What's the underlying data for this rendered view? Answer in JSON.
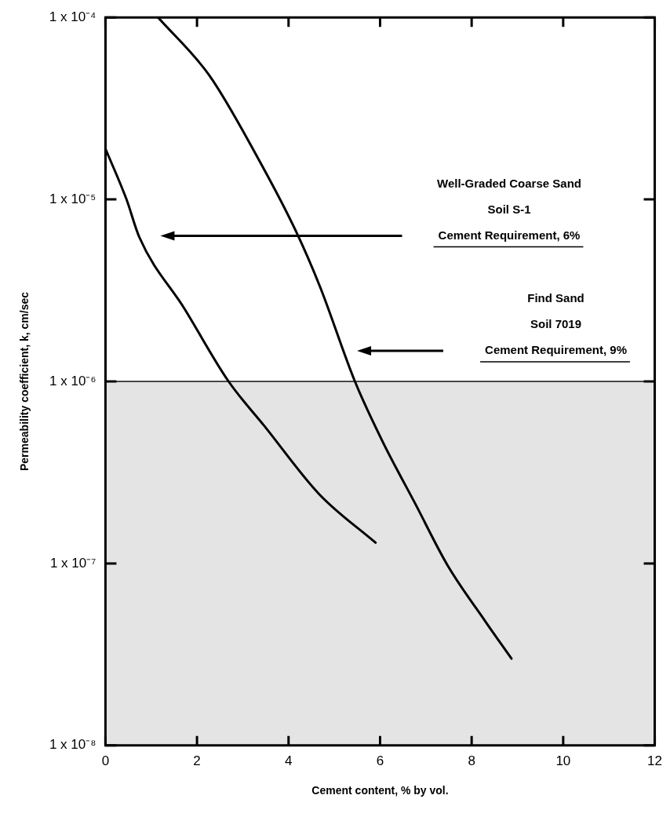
{
  "chart_data": {
    "type": "line",
    "xlabel": "Cement content, % by vol.",
    "ylabel": "Permeability coefficient, k, cm/sec",
    "xlim": [
      0,
      12
    ],
    "xticks": [
      0,
      2,
      4,
      6,
      8,
      10,
      12
    ],
    "ylim": [
      1e-08,
      0.0001
    ],
    "yticks": [
      {
        "value": 1e-08,
        "label": "1 x 10⁻⁸"
      },
      {
        "value": 1e-07,
        "label": "1 x 10⁻⁷"
      },
      {
        "value": 1e-06,
        "label": "1 x 10⁻⁶"
      },
      {
        "value": 1e-05,
        "label": "1 x 10⁻⁵"
      },
      {
        "value": 0.0001,
        "label": "1 x 10⁻⁴"
      }
    ],
    "log": true,
    "grid": false,
    "marker": "none",
    "line_style": "solid",
    "bands": [
      {
        "axis": "y",
        "from": 1e-08,
        "to": 1e-06,
        "color": "#e4e4e4"
      }
    ],
    "annotations": [
      "Well-Graded Coarse Sand",
      "Soil S-1",
      "Cement Requirement, 6%",
      "Find Sand",
      "Soil 7019",
      "Cement Requirement, 9%"
    ],
    "series": [
      {
        "color": "#000000",
        "x": [
          0,
          0.46,
          0.74,
          1.73,
          2.69,
          3.47,
          4.67,
          5.9
        ],
        "values": [
          1.9e-05,
          1e-05,
          6.2e-06,
          2.5e-06,
          1e-06,
          5.7e-07,
          2.4e-07,
          1.3e-07
        ]
      },
      {
        "color": "#000000",
        "x": [
          1.15,
          2.27,
          3.27,
          4.16,
          4.69,
          5.45,
          6.05,
          6.78,
          7.47,
          8.3,
          8.87
        ],
        "values": [
          0.0001,
          4.8e-05,
          1.8e-05,
          6.7e-06,
          3.3e-06,
          1e-06,
          4.7e-07,
          2.1e-07,
          9.8e-08,
          4.8e-08,
          3e-08
        ]
      }
    ]
  }
}
